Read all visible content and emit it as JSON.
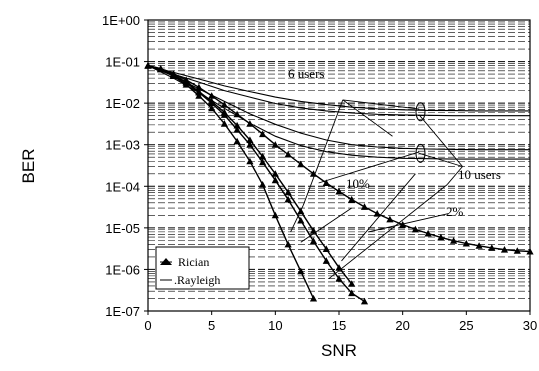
{
  "chart_data": {
    "type": "line",
    "title": "",
    "xlabel": "SNR",
    "ylabel": "BER",
    "x_scale": "linear",
    "y_scale": "log",
    "xlim": [
      0,
      30
    ],
    "ylim": [
      1e-07,
      1
    ],
    "x_ticks": [
      0,
      5,
      10,
      15,
      20,
      25,
      30
    ],
    "x_tick_labels": [
      "0",
      "5",
      "10",
      "15",
      "20",
      "25",
      "30"
    ],
    "y_ticks": [
      1,
      0.1,
      0.01,
      0.001,
      0.0001,
      1e-05,
      1e-06,
      1e-07
    ],
    "y_tick_labels": [
      "1E+00",
      "1E-01",
      "1E-02",
      "1E-03",
      "1E-04",
      "1E-05",
      "1E-06",
      "1E-07"
    ],
    "grid": "dashed horizontal",
    "legend": {
      "position": "bottom-left",
      "entries": [
        {
          "label": "Rician",
          "marker": "triangle"
        },
        {
          "label": ".Rayleigh",
          "marker": "line"
        }
      ]
    },
    "annotations": [
      "6 users",
      "10 users",
      "10%",
      "2%"
    ],
    "series": [
      {
        "group": "Rician",
        "marker": "triangle",
        "x": [
          0,
          1,
          2,
          3,
          4,
          5,
          6,
          7,
          8,
          9,
          10,
          11,
          12,
          13
        ],
        "y": [
          0.08,
          0.065,
          0.045,
          0.028,
          0.015,
          0.0075,
          0.0032,
          0.0012,
          0.0004,
          0.00011,
          2e-05,
          4e-06,
          9e-07,
          2e-07
        ]
      },
      {
        "group": "Rician",
        "marker": "triangle",
        "x": [
          0,
          1,
          2,
          3,
          4,
          5,
          6,
          7,
          8,
          9,
          10,
          11,
          12,
          13,
          14,
          15,
          16,
          17
        ],
        "y": [
          0.08,
          0.066,
          0.047,
          0.031,
          0.018,
          0.01,
          0.0052,
          0.0023,
          0.001,
          0.00038,
          0.00014,
          4.8e-05,
          1.5e-05,
          4.8e-06,
          1.6e-06,
          6e-07,
          2.7e-07,
          1.7e-07
        ]
      },
      {
        "group": "Rician",
        "marker": "triangle",
        "x": [
          0,
          1,
          2,
          3,
          4,
          5,
          6,
          7,
          8,
          9,
          10,
          11,
          12,
          13,
          14,
          15,
          16
        ],
        "y": [
          0.08,
          0.066,
          0.048,
          0.032,
          0.019,
          0.011,
          0.006,
          0.0029,
          0.0013,
          0.00052,
          0.0002,
          7.2e-05,
          2.5e-05,
          8.5e-06,
          3.1e-06,
          1.1e-06,
          4.5e-07
        ]
      },
      {
        "group": "Rician",
        "marker": "triangle",
        "x": [
          0,
          1,
          2,
          3,
          4,
          5,
          6,
          7,
          8,
          9,
          10,
          11,
          12,
          13,
          14,
          15,
          16,
          17,
          18,
          19,
          20,
          21,
          22,
          23,
          24,
          25,
          26,
          27,
          28,
          29,
          30
        ],
        "y": [
          0.08,
          0.068,
          0.051,
          0.036,
          0.024,
          0.015,
          0.0091,
          0.0054,
          0.0032,
          0.0018,
          0.001,
          0.00058,
          0.00034,
          0.0002,
          0.00012,
          7.5e-05,
          4.8e-05,
          3.2e-05,
          2.2e-05,
          1.6e-05,
          1.2e-05,
          9.2e-06,
          7.3e-06,
          5.9e-06,
          4.9e-06,
          4.2e-06,
          3.7e-06,
          3.3e-06,
          3e-06,
          2.8e-06,
          2.7e-06
        ]
      },
      {
        "group": "Rayleigh",
        "marker": "none",
        "x": [
          0,
          2,
          4,
          6,
          8,
          10,
          12,
          14,
          16,
          18,
          20,
          22,
          24,
          26,
          28,
          30
        ],
        "y": [
          0.08,
          0.055,
          0.038,
          0.026,
          0.019,
          0.014,
          0.011,
          0.0092,
          0.008,
          0.0073,
          0.0069,
          0.0067,
          0.0066,
          0.0065,
          0.0065,
          0.0065
        ]
      },
      {
        "group": "Rayleigh",
        "marker": "none",
        "x": [
          0,
          2,
          4,
          6,
          8,
          10,
          12,
          14,
          16,
          18,
          20,
          22,
          24,
          26,
          28,
          30
        ],
        "y": [
          0.08,
          0.05,
          0.032,
          0.02,
          0.014,
          0.0098,
          0.0077,
          0.0065,
          0.0058,
          0.0054,
          0.0052,
          0.0051,
          0.005,
          0.005,
          0.005,
          0.005
        ]
      },
      {
        "group": "Rayleigh",
        "marker": "none",
        "x": [
          0,
          2,
          4,
          6,
          8,
          10,
          12,
          14,
          16,
          18,
          20,
          22,
          24,
          26,
          28,
          30
        ],
        "y": [
          0.08,
          0.045,
          0.022,
          0.011,
          0.0055,
          0.0031,
          0.0019,
          0.0013,
          0.001,
          0.00088,
          0.00082,
          0.00079,
          0.00077,
          0.00076,
          0.00076,
          0.00076
        ]
      },
      {
        "group": "Rayleigh",
        "marker": "none",
        "x": [
          0,
          2,
          4,
          6,
          8,
          10,
          12,
          14,
          16,
          18,
          20,
          22,
          24,
          26,
          28,
          30
        ],
        "y": [
          0.08,
          0.04,
          0.018,
          0.0075,
          0.0033,
          0.0016,
          0.00095,
          0.00068,
          0.00056,
          0.0005,
          0.00047,
          0.00046,
          0.00045,
          0.00045,
          0.00045,
          0.00045
        ]
      }
    ]
  }
}
